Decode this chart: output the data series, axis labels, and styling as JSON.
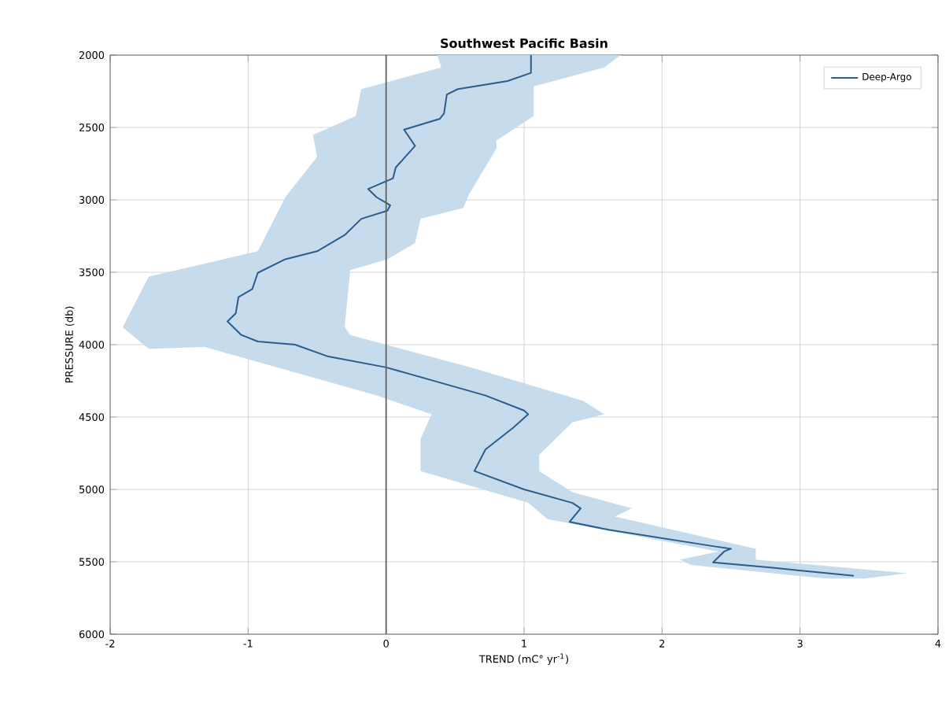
{
  "chart_data": {
    "type": "line",
    "title": "Southwest Pacific Basin",
    "xlabel": "TREND (mC° yr$^{-1}$)",
    "ylabel": "PRESSURE (db)",
    "xlim": [
      -2,
      4
    ],
    "xticks": [
      -2,
      -1,
      0,
      1,
      2,
      3,
      4
    ],
    "ylim": [
      6000,
      2000
    ],
    "yticks": [
      2000,
      2500,
      3000,
      3500,
      4000,
      4500,
      5000,
      5500,
      6000
    ],
    "grid": true,
    "legend": "top right",
    "ref_lines": [
      {
        "axis": "x",
        "value": 0,
        "color": "#606060"
      }
    ],
    "series": [
      {
        "type": "area",
        "color": "#c6dcec",
        "x": [
          0.37,
          0.4,
          -0.18,
          -0.22,
          -0.53,
          -0.5,
          -0.73,
          -0.93,
          -1.72,
          -1.91,
          -1.72,
          -1.32,
          -0.07,
          0.33,
          0.25,
          0.25,
          1.03,
          1.17,
          2.41,
          2.13,
          2.21,
          3.19,
          3.47,
          3.78,
          2.68,
          2.68,
          1.66,
          1.78,
          1.35,
          1.11,
          1.11,
          1.35,
          1.58,
          1.43,
          0.64,
          -0.26,
          -0.3,
          -0.26,
          0.01,
          0.21,
          0.25,
          0.56,
          0.6,
          0.8,
          0.8,
          1.07,
          1.07,
          1.58,
          1.7
        ],
        "values": [
          2000,
          2086,
          2235,
          2421,
          2552,
          2702,
          2981,
          3355,
          3530,
          3881,
          4030,
          4015,
          4351,
          4481,
          4649,
          4873,
          5093,
          5205,
          5429,
          5485,
          5522,
          5616,
          5616,
          5579,
          5485,
          5410,
          5187,
          5131,
          5019,
          4873,
          4761,
          4537,
          4481,
          4388,
          4164,
          3933,
          3877,
          3485,
          3410,
          3299,
          3131,
          3056,
          2963,
          2646,
          2590,
          2421,
          2216,
          2086,
          2000
        ]
      },
      {
        "name": "Deep-Argo",
        "color": "#2a5d8c",
        "x": [
          1.05,
          1.05,
          0.88,
          0.52,
          0.44,
          0.42,
          0.39,
          0.13,
          0.21,
          0.07,
          0.05,
          -0.13,
          -0.07,
          0.03,
          0.01,
          -0.18,
          -0.3,
          -0.5,
          -0.73,
          -0.93,
          -0.97,
          -1.07,
          -1.09,
          -1.15,
          -1.05,
          -0.93,
          -0.66,
          -0.42,
          0,
          0.72,
          1.0,
          1.03,
          0.92,
          0.72,
          0.64,
          1.0,
          1.35,
          1.41,
          1.33,
          1.62,
          2.37,
          2.5,
          2.45,
          2.37,
          2.8,
          3.39
        ],
        "values": [
          2000,
          2123,
          2179,
          2235,
          2272,
          2403,
          2440,
          2515,
          2627,
          2776,
          2851,
          2925,
          2981,
          3037,
          3075,
          3131,
          3243,
          3355,
          3410,
          3504,
          3616,
          3672,
          3784,
          3840,
          3933,
          3978,
          4000,
          4082,
          4157,
          4351,
          4455,
          4481,
          4575,
          4724,
          4873,
          5000,
          5093,
          5131,
          5224,
          5280,
          5392,
          5410,
          5429,
          5504,
          5541,
          5597
        ]
      }
    ]
  }
}
